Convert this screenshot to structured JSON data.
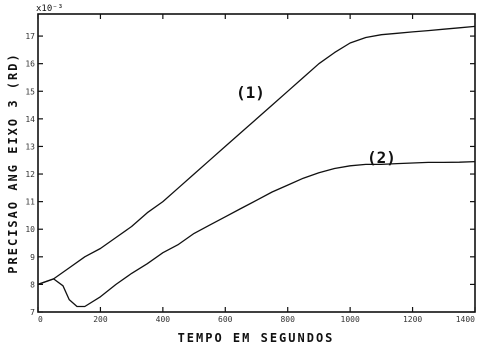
{
  "chart_data": {
    "type": "line",
    "title": "",
    "xlabel": "TEMPO EM SEGUNDOS",
    "ylabel": "PRECISAO ANG EIXO 3 (RD)",
    "y_scale_label": "x10⁻³",
    "xlim": [
      0,
      1400
    ],
    "ylim": [
      7,
      17.8
    ],
    "x_ticks": [
      0,
      200,
      400,
      600,
      800,
      1000,
      1200,
      1400
    ],
    "x_tick_labels": [
      "0",
      "200",
      "400",
      "600",
      "800",
      "1000",
      "1200",
      "1400"
    ],
    "y_ticks": [
      7,
      8,
      9,
      10,
      11,
      12,
      13,
      14,
      15,
      16,
      17
    ],
    "y_tick_labels": [
      "7",
      "8",
      "9",
      "10",
      "11",
      "12",
      "13",
      "14",
      "15",
      "16",
      "17"
    ],
    "grid": false,
    "series": [
      {
        "name": "(1)",
        "x": [
          0,
          50,
          100,
          150,
          200,
          250,
          300,
          350,
          400,
          450,
          500,
          550,
          600,
          650,
          700,
          750,
          800,
          850,
          900,
          950,
          1000,
          1050,
          1100,
          1150,
          1200,
          1250,
          1300,
          1350,
          1400
        ],
        "values": [
          8.0,
          8.2,
          8.6,
          9.0,
          9.3,
          9.7,
          10.1,
          10.6,
          11.0,
          11.5,
          12.0,
          12.5,
          13.0,
          13.5,
          14.0,
          14.5,
          15.0,
          15.5,
          16.0,
          16.4,
          16.75,
          16.95,
          17.05,
          17.1,
          17.15,
          17.2,
          17.25,
          17.3,
          17.35
        ]
      },
      {
        "name": "(2)",
        "x": [
          0,
          50,
          80,
          100,
          125,
          150,
          200,
          250,
          300,
          350,
          400,
          450,
          500,
          550,
          600,
          650,
          700,
          750,
          800,
          850,
          900,
          950,
          1000,
          1050,
          1100,
          1150,
          1200,
          1250,
          1300,
          1350,
          1400
        ],
        "values": [
          8.0,
          8.2,
          7.95,
          7.45,
          7.2,
          7.2,
          7.55,
          8.0,
          8.4,
          8.75,
          9.15,
          9.45,
          9.85,
          10.15,
          10.45,
          10.75,
          11.05,
          11.35,
          11.6,
          11.85,
          12.05,
          12.2,
          12.3,
          12.35,
          12.35,
          12.38,
          12.4,
          12.42,
          12.42,
          12.43,
          12.45
        ]
      }
    ]
  }
}
